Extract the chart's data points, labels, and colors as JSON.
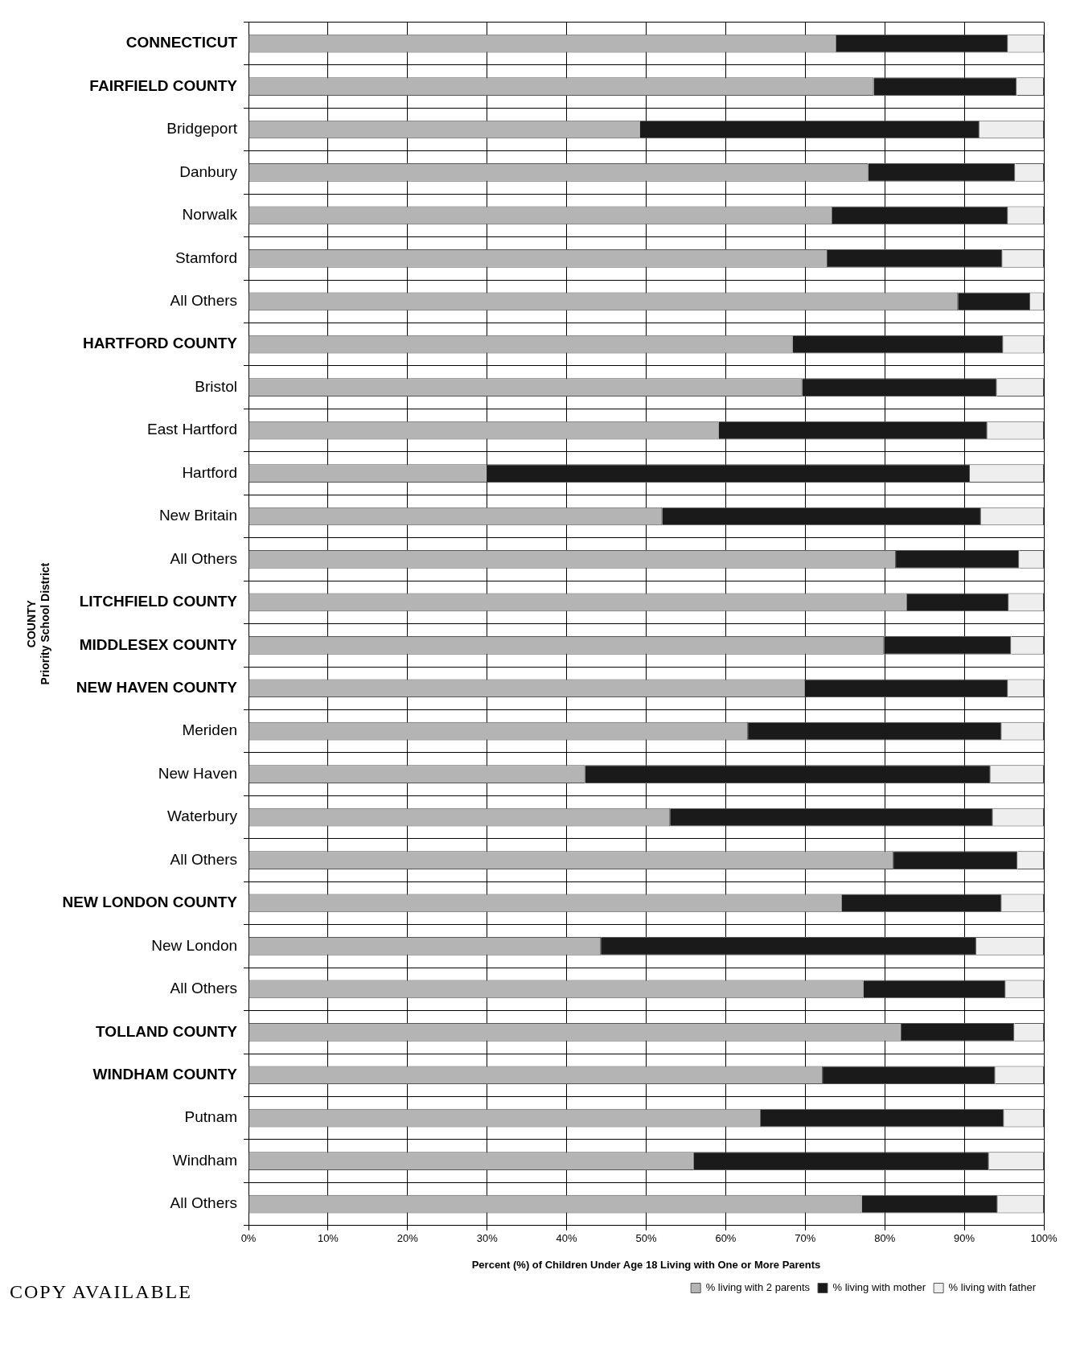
{
  "chart_data": {
    "type": "bar",
    "orientation": "horizontal",
    "stacked": true,
    "xlabel": "Percent (%) of Children Under Age 18 Living with One or More Parents",
    "ylabel": "COUNTY\nPriority School District",
    "categories": [
      "CONNECTICUT",
      "FAIRFIELD COUNTY",
      "Bridgeport",
      "Danbury",
      "Norwalk",
      "Stamford",
      "All Others",
      "HARTFORD COUNTY",
      "Bristol",
      "East Hartford",
      "Hartford",
      "New Britain",
      "All Others",
      "LITCHFIELD COUNTY",
      "MIDDLESEX COUNTY",
      "NEW HAVEN COUNTY",
      "Meriden",
      "New Haven",
      "Waterbury",
      "All Others",
      "NEW LONDON COUNTY",
      "New London",
      "All Others",
      "TOLLAND COUNTY",
      "WINDHAM COUNTY",
      "Putnam",
      "Windham",
      "All Others"
    ],
    "series": [
      {
        "name": "% living with 2 parents",
        "color": "#b4b4b4",
        "values": [
          73.9,
          78.6,
          49.2,
          77.9,
          73.4,
          72.8,
          89.2,
          68.4,
          69.6,
          59.1,
          30,
          52,
          81.4,
          82.8,
          79.9,
          70,
          62.8,
          42.3,
          53,
          81.1,
          74.6,
          44.3,
          77.3,
          82.1,
          72.2,
          64.4,
          56,
          77.1
        ]
      },
      {
        "name": "% living with mother",
        "color": "#1a1a1a",
        "values": [
          21.6,
          18,
          42.7,
          18.5,
          22.1,
          22,
          9.1,
          26.5,
          24.5,
          33.8,
          60.7,
          40.1,
          15.5,
          12.8,
          16,
          25.5,
          31.9,
          51,
          40.6,
          15.6,
          20.1,
          47.2,
          17.9,
          14.2,
          21.7,
          30.6,
          37.1,
          17.1
        ]
      },
      {
        "name": "% living with father",
        "color": "#eeeeee",
        "values": [
          4.5,
          3.4,
          8.1,
          3.6,
          4.5,
          5.2,
          1.7,
          5.1,
          5.9,
          7.1,
          9.3,
          7.9,
          3.1,
          4.4,
          4.1,
          4.5,
          5.3,
          6.7,
          6.4,
          3.3,
          5.3,
          8.5,
          4.8,
          3.7,
          6.1,
          5,
          6.9,
          5.8
        ]
      }
    ],
    "xlim": [
      0,
      100
    ],
    "xticks": [
      {
        "value": 0,
        "label": "0%"
      },
      {
        "value": 10,
        "label": "10%"
      },
      {
        "value": 20,
        "label": "20%"
      },
      {
        "value": 30,
        "label": "30%"
      },
      {
        "value": 40,
        "label": "40%"
      },
      {
        "value": 50,
        "label": "50%"
      },
      {
        "value": 60,
        "label": "60%"
      },
      {
        "value": 70,
        "label": "70%"
      },
      {
        "value": 80,
        "label": "80%"
      },
      {
        "value": 90,
        "label": "90%"
      },
      {
        "value": 100,
        "label": "100%"
      }
    ],
    "grid": true,
    "legend": "bottom",
    "annotations": [
      "COPY AVAILABLE"
    ]
  }
}
